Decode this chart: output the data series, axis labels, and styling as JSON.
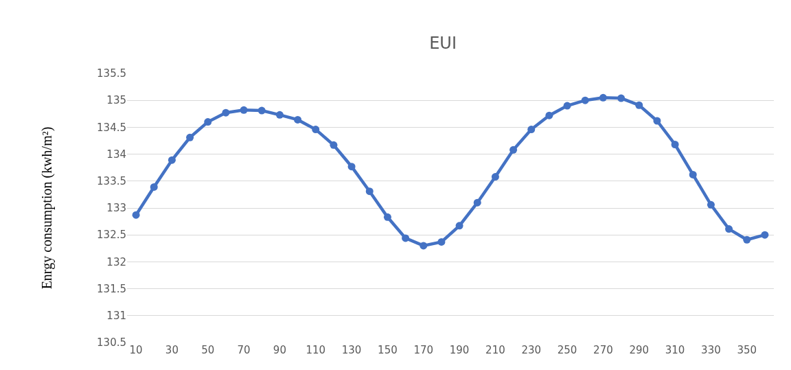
{
  "chart_data": {
    "type": "line",
    "title": "EUI",
    "ylabel": "Enrgy consumption (kwh/m²)",
    "categories": [
      "10",
      null,
      "30",
      null,
      "50",
      null,
      "70",
      null,
      "90",
      null,
      "110",
      null,
      "130",
      null,
      "150",
      null,
      "170",
      null,
      "190",
      null,
      "210",
      null,
      "230",
      null,
      "250",
      null,
      "270",
      null,
      "290",
      null,
      "310",
      null,
      "330",
      null,
      "350",
      null
    ],
    "series": [
      {
        "color": "#4472c4",
        "values": [
          132.87,
          133.39,
          133.89,
          134.31,
          134.6,
          134.77,
          134.82,
          134.81,
          134.73,
          134.64,
          134.46,
          134.17,
          133.77,
          133.31,
          132.83,
          132.44,
          132.3,
          132.37,
          132.67,
          133.1,
          133.58,
          134.08,
          134.46,
          134.72,
          134.9,
          135.0,
          135.05,
          135.04,
          134.91,
          134.62,
          134.18,
          133.62,
          133.06,
          132.61,
          132.41,
          132.5
        ]
      }
    ],
    "ylim": [
      130.5,
      135.5
    ],
    "yticks": [
      130.5,
      131,
      131.5,
      132,
      132.5,
      133,
      133.5,
      134,
      134.5,
      135,
      135.5
    ],
    "grid": "y",
    "marker": "circle",
    "line_style": "solid"
  }
}
